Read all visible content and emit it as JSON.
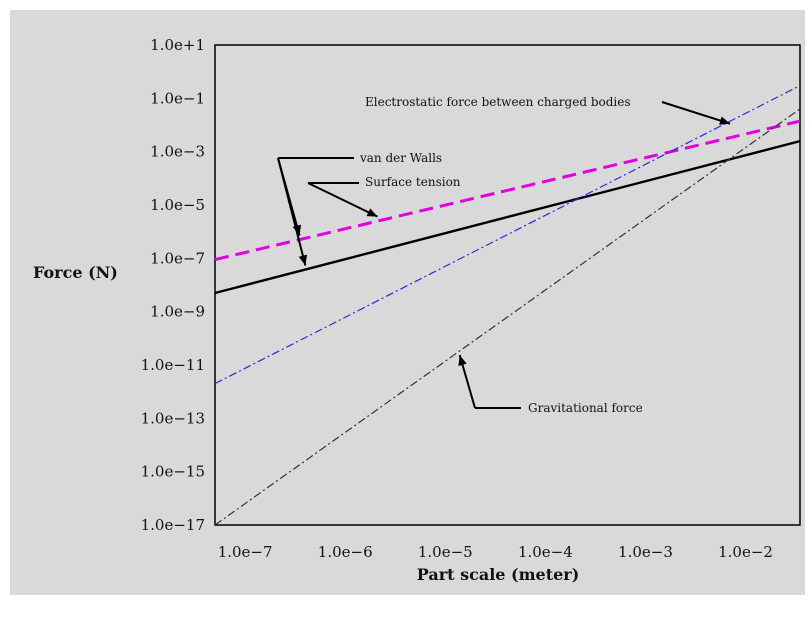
{
  "chart_data": {
    "type": "line",
    "xlabel": "Part scale (meter)",
    "ylabel": "Force (N)",
    "x_scale": "log",
    "y_scale": "log",
    "xlim": [
      5e-08,
      0.035
    ],
    "ylim": [
      1e-17,
      10
    ],
    "x_ticks": [
      "1.0e−7",
      "1.0e−6",
      "1.0e−5",
      "1.0e−4",
      "1.0e−3",
      "1.0e−2"
    ],
    "y_ticks": [
      "1.0e+1",
      "1.0e−1",
      "1.0e−3",
      "1.0e−5",
      "1.0e−7",
      "1.0e−9",
      "1.0e−11",
      "1.0e−13",
      "1.0e−15",
      "1.0e−17"
    ],
    "grid": false,
    "legend": "none",
    "series": [
      {
        "key": "vdw",
        "name": "van der Walls",
        "color": "#000000",
        "style": "solid",
        "x": [
          5e-08,
          0.035
        ],
        "y": [
          5e-09,
          0.0025
        ]
      },
      {
        "key": "surface",
        "name": "Surface tension",
        "color": "#e000e0",
        "style": "dashed",
        "x": [
          5e-08,
          0.035
        ],
        "y": [
          9e-08,
          0.014
        ]
      },
      {
        "key": "electro",
        "name": "Electrostatic force between charged bodies",
        "color": "#2a2ad8",
        "style": "dashdot",
        "x": [
          5e-08,
          0.035
        ],
        "y": [
          2e-12,
          0.3
        ]
      },
      {
        "key": "gravity",
        "name": "Gravitational force",
        "color": "#333333",
        "style": "dashdot",
        "x": [
          5e-08,
          0.035
        ],
        "y": [
          1e-17,
          0.04
        ]
      }
    ],
    "annotations": [
      "Electrostatic force between charged bodies",
      "van der Walls",
      "Surface tension",
      "Gravitational force"
    ]
  }
}
